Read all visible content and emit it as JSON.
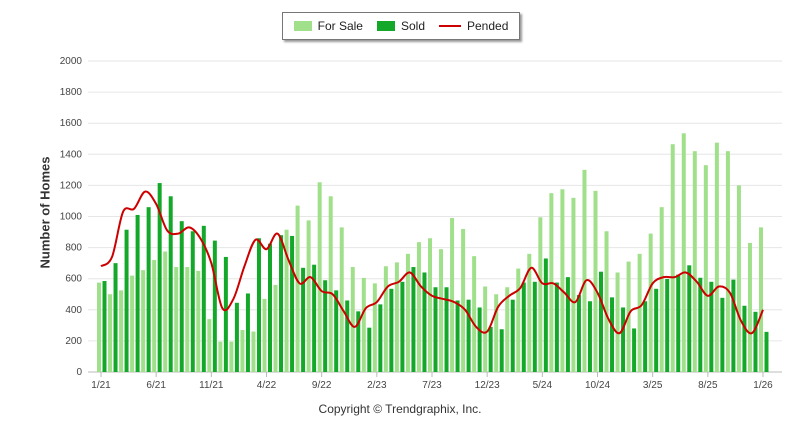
{
  "legend": {
    "for_sale": "For Sale",
    "sold": "Sold",
    "pended": "Pended"
  },
  "copyright": "Copyright © Trendgraphix, Inc.",
  "colors": {
    "for_sale": "#a0e08a",
    "sold": "#14a82a",
    "pended": "#cc0000"
  },
  "chart_data": {
    "type": "bar",
    "title": "",
    "xlabel": "",
    "ylabel": "Number of Homes",
    "ylim": [
      0,
      2000
    ],
    "yticks": [
      0,
      200,
      400,
      600,
      800,
      1000,
      1200,
      1400,
      1600,
      1800,
      2000
    ],
    "grid": true,
    "legend_position": "top-center",
    "xtick_labels": [
      {
        "index": 0,
        "label": "1/21"
      },
      {
        "index": 5,
        "label": "6/21"
      },
      {
        "index": 10,
        "label": "11/21"
      },
      {
        "index": 15,
        "label": "4/22"
      },
      {
        "index": 20,
        "label": "9/22"
      },
      {
        "index": 25,
        "label": "2/23"
      },
      {
        "index": 30,
        "label": "7/23"
      },
      {
        "index": 35,
        "label": "12/23"
      },
      {
        "index": 40,
        "label": "5/24"
      },
      {
        "index": 45,
        "label": "10/24"
      },
      {
        "index": 50,
        "label": "3/25"
      },
      {
        "index": 55,
        "label": "8/25"
      },
      {
        "index": 60,
        "label": "1/26"
      }
    ],
    "categories": [
      "1/21",
      "2/21",
      "3/21",
      "4/21",
      "5/21",
      "6/21",
      "7/21",
      "8/21",
      "9/21",
      "10/21",
      "11/21",
      "12/21",
      "1/22",
      "2/22",
      "3/22",
      "4/22",
      "5/22",
      "6/22",
      "7/22",
      "8/22",
      "9/22",
      "10/22",
      "11/22",
      "12/22",
      "1/23",
      "2/23",
      "3/23",
      "4/23",
      "5/23",
      "6/23",
      "7/23",
      "8/23",
      "9/23",
      "10/23",
      "11/23",
      "12/23",
      "1/24",
      "2/24",
      "3/24",
      "4/24",
      "5/24",
      "6/24",
      "7/24",
      "8/24",
      "9/24",
      "10/24",
      "11/24",
      "12/24",
      "1/25",
      "2/25",
      "3/25",
      "4/25",
      "5/25",
      "6/25",
      "7/25",
      "8/25",
      "9/25",
      "10/25",
      "11/25",
      "12/25",
      "1/26"
    ],
    "series": [
      {
        "name": "For Sale",
        "type": "bar",
        "values": [
          575,
          500,
          525,
          620,
          655,
          720,
          775,
          675,
          675,
          650,
          340,
          195,
          195,
          270,
          260,
          470,
          560,
          915,
          1070,
          975,
          1220,
          1130,
          930,
          675,
          605,
          570,
          680,
          705,
          760,
          835,
          860,
          790,
          990,
          920,
          745,
          550,
          500,
          545,
          665,
          760,
          995,
          1150,
          1175,
          1120,
          1300,
          1165,
          905,
          640,
          710,
          760,
          890,
          1060,
          1465,
          1535,
          1420,
          1330,
          1475,
          1420,
          1200,
          830,
          930
        ]
      },
      {
        "name": "Sold",
        "type": "bar",
        "values": [
          585,
          700,
          915,
          1010,
          1060,
          1215,
          1130,
          970,
          905,
          940,
          845,
          740,
          445,
          505,
          860,
          825,
          880,
          875,
          670,
          690,
          590,
          525,
          460,
          390,
          285,
          435,
          535,
          580,
          675,
          640,
          545,
          545,
          460,
          465,
          415,
          290,
          275,
          465,
          575,
          580,
          730,
          575,
          610,
          495,
          455,
          645,
          480,
          415,
          280,
          455,
          535,
          598,
          626,
          686,
          606,
          580,
          477,
          594,
          426,
          387,
          258
        ]
      },
      {
        "name": "Pended",
        "type": "line",
        "values": [
          680,
          740,
          1030,
          1050,
          1160,
          1080,
          910,
          890,
          930,
          860,
          700,
          410,
          470,
          680,
          850,
          790,
          890,
          720,
          570,
          610,
          520,
          500,
          390,
          290,
          410,
          450,
          550,
          580,
          640,
          550,
          490,
          470,
          450,
          400,
          290,
          260,
          420,
          490,
          540,
          670,
          570,
          570,
          510,
          450,
          590,
          510,
          340,
          250,
          390,
          430,
          570,
          610,
          610,
          640,
          580,
          490,
          550,
          510,
          330,
          250,
          400
        ]
      }
    ]
  }
}
